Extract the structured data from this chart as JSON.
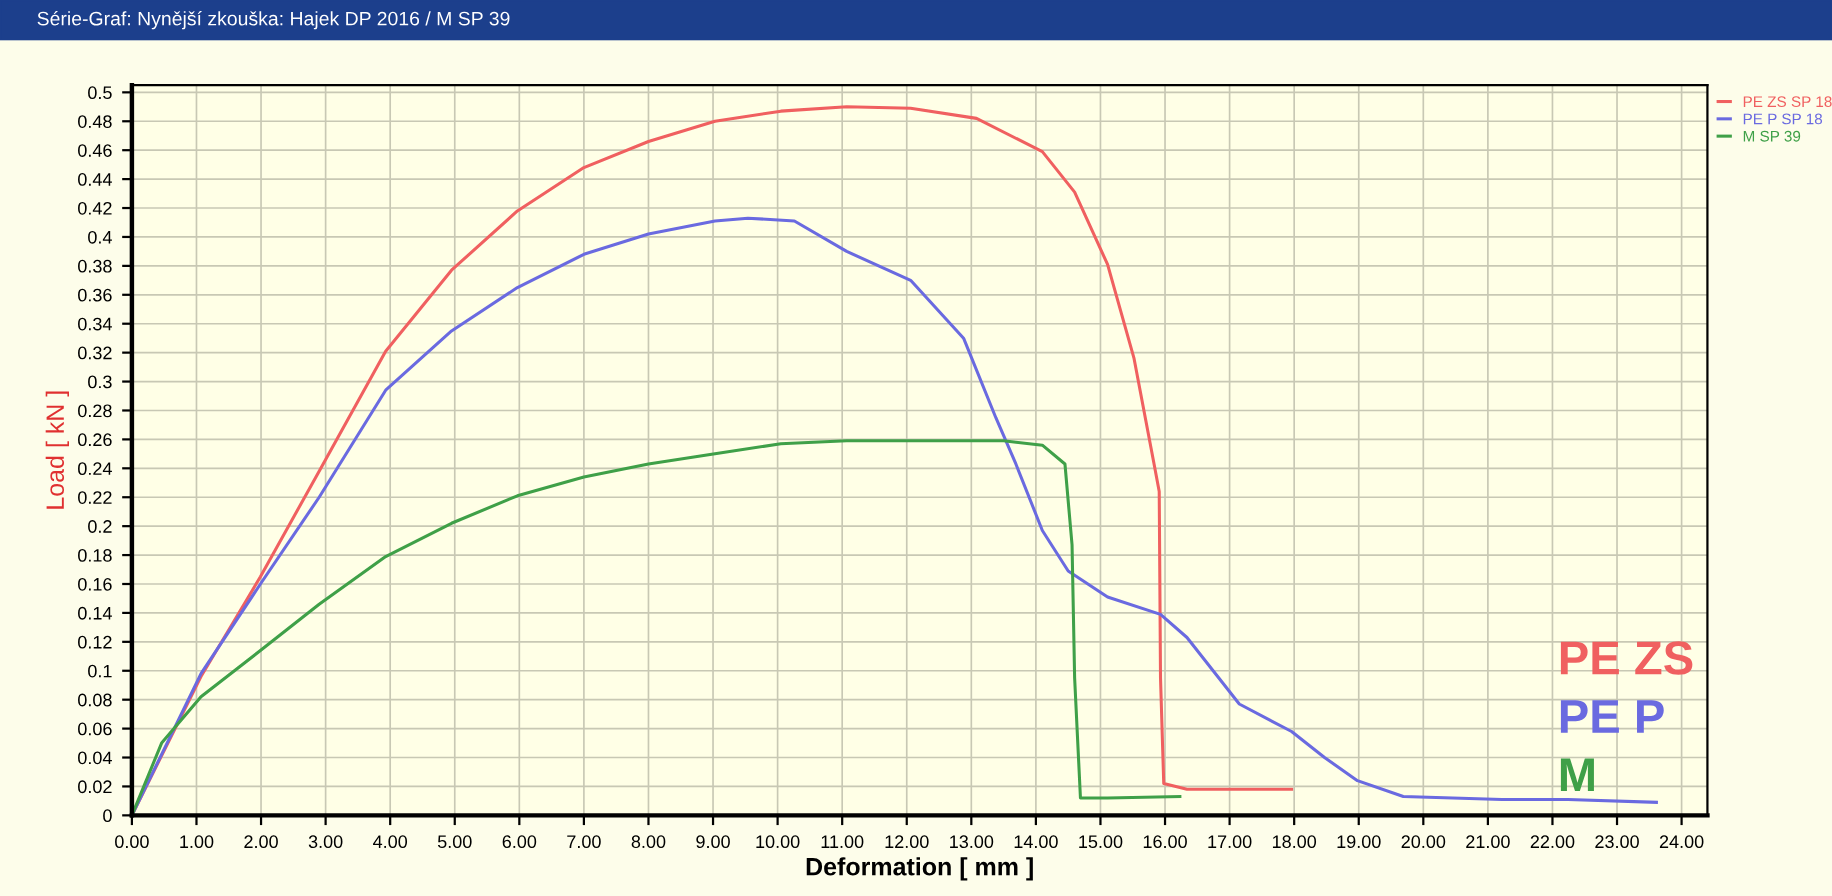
{
  "chart_data": {
    "type": "line",
    "title": "Série-Graf: Nynější zkouška: Hajek DP 2016 / M SP 39",
    "xlabel": "Deformation [ mm ]",
    "ylabel": "Load [ kN ]",
    "xlim": [
      0,
      24.4
    ],
    "ylim": [
      0,
      0.505
    ],
    "xticks": [
      {
        "value": 0,
        "label": "0.00"
      },
      {
        "value": 1,
        "label": "1.00"
      },
      {
        "value": 2,
        "label": "2.00"
      },
      {
        "value": 3,
        "label": "3.00"
      },
      {
        "value": 4,
        "label": "4.00"
      },
      {
        "value": 5,
        "label": "5.00"
      },
      {
        "value": 6,
        "label": "6.00"
      },
      {
        "value": 7,
        "label": "7.00"
      },
      {
        "value": 8,
        "label": "8.00"
      },
      {
        "value": 9,
        "label": "9.00"
      },
      {
        "value": 10,
        "label": "10.00"
      },
      {
        "value": 11,
        "label": "11.00"
      },
      {
        "value": 12,
        "label": "12.00"
      },
      {
        "value": 13,
        "label": "13.00"
      },
      {
        "value": 14,
        "label": "14.00"
      },
      {
        "value": 15,
        "label": "15.00"
      },
      {
        "value": 16,
        "label": "16.00"
      },
      {
        "value": 17,
        "label": "17.00"
      },
      {
        "value": 18,
        "label": "18.00"
      },
      {
        "value": 19,
        "label": "19.00"
      },
      {
        "value": 20,
        "label": "20.00"
      },
      {
        "value": 21,
        "label": "21.00"
      },
      {
        "value": 22,
        "label": "22.00"
      },
      {
        "value": 23,
        "label": "23.00"
      },
      {
        "value": 24,
        "label": "24.00"
      }
    ],
    "yticks": [
      0,
      0.02,
      0.04,
      0.06,
      0.08,
      0.1,
      0.12,
      0.14,
      0.16,
      0.18,
      0.2,
      0.22,
      0.24,
      0.26,
      0.28,
      0.3,
      0.32,
      0.34,
      0.36,
      0.38,
      0.4,
      0.42,
      0.44,
      0.46,
      0.48,
      0.5
    ],
    "grid": true,
    "legend": "top right",
    "marker": "none",
    "line_style": "solid",
    "series": [
      {
        "name": "PE ZS SP 18",
        "color": "#f06060",
        "x": [
          0,
          1.07,
          1.99,
          2.9,
          3.93,
          4.95,
          5.97,
          7.0,
          8.0,
          9.03,
          10.05,
          11.07,
          12.06,
          13.08,
          14.1,
          14.6,
          15.11,
          15.52,
          15.83,
          15.91,
          15.93,
          15.98,
          16.34,
          17.96
        ],
        "values": [
          0,
          0.096,
          0.165,
          0.238,
          0.321,
          0.377,
          0.418,
          0.448,
          0.466,
          0.48,
          0.487,
          0.49,
          0.489,
          0.482,
          0.459,
          0.431,
          0.381,
          0.316,
          0.243,
          0.224,
          0.095,
          0.022,
          0.018,
          0.018
        ]
      },
      {
        "name": "PE P SP 18",
        "color": "#6a6ae0",
        "x": [
          0,
          1.07,
          1.99,
          2.9,
          3.93,
          4.95,
          5.97,
          7.0,
          8.0,
          9.03,
          9.54,
          10.26,
          11.07,
          12.06,
          12.88,
          13.38,
          13.69,
          14.1,
          14.5,
          15.11,
          15.93,
          16.34,
          17.15,
          17.96,
          18.47,
          18.98,
          19.69,
          21.22,
          22.24,
          23.61
        ],
        "values": [
          0,
          0.098,
          0.16,
          0.22,
          0.294,
          0.335,
          0.365,
          0.388,
          0.402,
          0.411,
          0.413,
          0.411,
          0.39,
          0.37,
          0.33,
          0.275,
          0.243,
          0.197,
          0.169,
          0.151,
          0.139,
          0.123,
          0.077,
          0.058,
          0.04,
          0.024,
          0.013,
          0.011,
          0.011,
          0.009
        ]
      },
      {
        "name": "M SP 39",
        "color": "#3fa048",
        "x": [
          0,
          0.46,
          1.07,
          1.99,
          2.9,
          3.93,
          4.95,
          5.97,
          7.0,
          8.0,
          9.03,
          10.05,
          11.07,
          12.06,
          13.5,
          14.1,
          14.45,
          14.56,
          14.6,
          14.69,
          15.11,
          16.23
        ],
        "values": [
          0,
          0.05,
          0.082,
          0.114,
          0.146,
          0.179,
          0.202,
          0.221,
          0.234,
          0.243,
          0.25,
          0.257,
          0.259,
          0.259,
          0.259,
          0.256,
          0.243,
          0.187,
          0.095,
          0.012,
          0.012,
          0.013
        ]
      }
    ],
    "annotations": [
      "PE ZS",
      "PE P",
      "M"
    ]
  }
}
